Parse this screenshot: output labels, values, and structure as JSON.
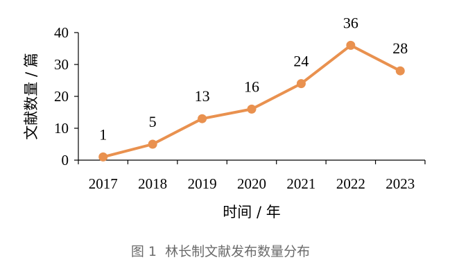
{
  "chart_data": {
    "type": "line",
    "categories": [
      "2017",
      "2018",
      "2019",
      "2020",
      "2021",
      "2022",
      "2023"
    ],
    "series": [
      {
        "values": [
          1,
          5,
          13,
          16,
          24,
          36,
          28
        ]
      }
    ],
    "data_labels": [
      "1",
      "5",
      "13",
      "16",
      "24",
      "36",
      "28"
    ],
    "xlabel": "时间 / 年",
    "ylabel": "文献数量 / 篇",
    "ylim": [
      0,
      40
    ],
    "yticks": [
      0,
      10,
      20,
      30,
      40
    ],
    "ytick_labels": [
      "0",
      "10",
      "20",
      "30",
      "40"
    ],
    "grid": false,
    "legend": "none",
    "line_color": "#E9914F"
  },
  "caption": "图 1  林长制文献发布数量分布"
}
